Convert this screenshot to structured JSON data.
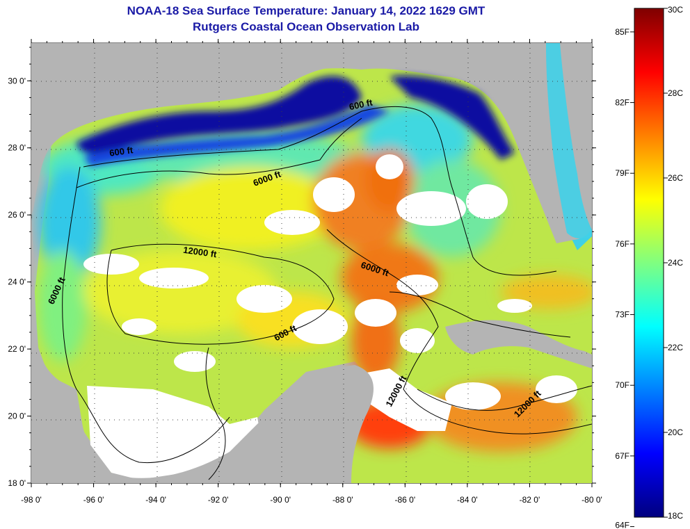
{
  "header": {
    "title": "NOAA-18 Sea Surface Temperature:  January 14, 2022 1629 GMT",
    "subtitle": "Rutgers Coastal Ocean Observation Lab"
  },
  "map": {
    "lon_ticks": [
      "-98 0'",
      "-96 0'",
      "-94 0'",
      "-92 0'",
      "-90 0'",
      "-88 0'",
      "-86 0'",
      "-84 0'",
      "-82 0'",
      "-80 0'"
    ],
    "lat_ticks": [
      "30 0'",
      "28 0'",
      "26 0'",
      "24 0'",
      "22 0'",
      "20 0'",
      "18 0'"
    ],
    "contour_labels": [
      {
        "text": "600 ft",
        "lon": -87.4,
        "lat": 29.2,
        "rot": -12
      },
      {
        "text": "600 ft",
        "lon": -95.1,
        "lat": 27.8,
        "rot": -8
      },
      {
        "text": "6000 ft",
        "lon": -90.4,
        "lat": 27.0,
        "rot": -20
      },
      {
        "text": "12000 ft",
        "lon": -92.6,
        "lat": 24.8,
        "rot": 8
      },
      {
        "text": "6000 ft",
        "lon": -87.0,
        "lat": 24.3,
        "rot": 18
      },
      {
        "text": "6000 ft",
        "lon": -97.1,
        "lat": 23.7,
        "rot": -65
      },
      {
        "text": "600 ft",
        "lon": -89.8,
        "lat": 22.4,
        "rot": -28
      },
      {
        "text": "12000 ft",
        "lon": -86.2,
        "lat": 20.7,
        "rot": -62
      },
      {
        "text": "12000 ft",
        "lon": -82.0,
        "lat": 20.3,
        "rot": -45
      }
    ],
    "colors": {
      "land": "#b4b4b4",
      "cloud": "#ffffff",
      "contour": "#000000"
    }
  },
  "colorbar": {
    "fahrenheit_labels": [
      "85F",
      "82F",
      "79F",
      "76F",
      "73F",
      "70F",
      "67F",
      "64F"
    ],
    "celsius_labels": [
      "30C",
      "28C",
      "26C",
      "24C",
      "22C",
      "20C",
      "18C"
    ],
    "stops": [
      "#00007f",
      "#0000ff",
      "#0080ff",
      "#00ffff",
      "#80ff80",
      "#ffff00",
      "#ff8000",
      "#ff0000",
      "#7f0000"
    ]
  }
}
